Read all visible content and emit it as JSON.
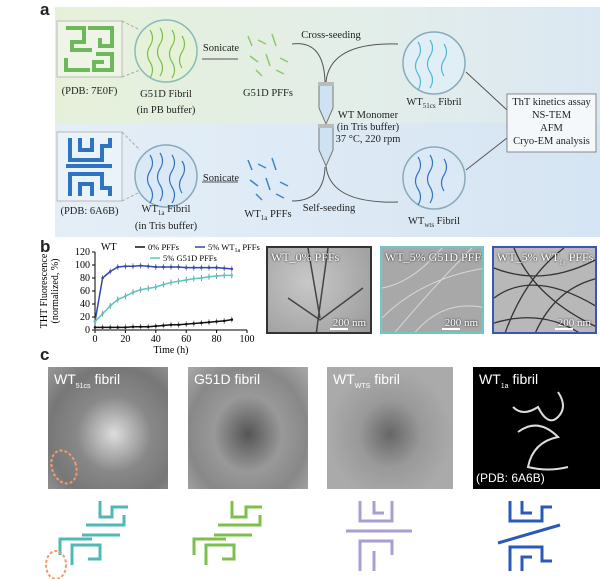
{
  "panel_a": {
    "label": "a",
    "top": {
      "pdb": "(PDB: 7E0F)",
      "fibril_line1": "G51D Fibril",
      "fibril_line2": "(in PB buffer)",
      "sonicate": "Sonicate",
      "pffs": "G51D PFFs",
      "seeding": "Cross-seeding",
      "product_main": "WT",
      "product_sub": "51cs",
      "product_suffix": " Fibril",
      "color": "#6cb85a"
    },
    "bottom": {
      "pdb": "(PDB: 6A6B)",
      "fibril_main": "WT",
      "fibril_sub": "1a",
      "fibril_suffix": " Fibril",
      "fibril_line2": "(in Tris buffer)",
      "sonicate": "Sonicate",
      "pffs_main": "WT",
      "pffs_sub": "1a",
      "pffs_suffix": " PFFs",
      "seeding": "Self-seeding",
      "product_main": "WT",
      "product_sub": "wts",
      "product_suffix": " Fibril",
      "color": "#2e74c0"
    },
    "monomer": [
      "WT Monomer",
      "(in Tris buffer)",
      "37 °C, 220 rpm"
    ],
    "analysis": [
      "ThT kinetics assay",
      "NS-TEM",
      "AFM",
      "Cryo-EM analysis"
    ]
  },
  "panel_b": {
    "label": "b",
    "tem_images": [
      {
        "label": "WT_0% PFFs",
        "scale": "200 nm",
        "border": "#333333"
      },
      {
        "label": "WT_5% G51D PFFs",
        "scale": "200 nm",
        "border": "#6cc9c9"
      },
      {
        "label_main": "WT_5% WT",
        "label_sub": "1a",
        "label_suffix": " PFFs",
        "scale": "200 nm",
        "border": "#3b55b5"
      }
    ]
  },
  "chart_data": {
    "type": "line",
    "annotation": "WT",
    "xlabel": "Time (h)",
    "ylabel": [
      "THT Fluorescence",
      "(normalized, %)"
    ],
    "xlim": [
      0,
      100
    ],
    "ylim": [
      0,
      120
    ],
    "xticks": [
      0,
      20,
      40,
      60,
      80,
      100
    ],
    "yticks": [
      0,
      20,
      40,
      60,
      80,
      100,
      120
    ],
    "legend_position": "top",
    "x": [
      0,
      5,
      10,
      15,
      20,
      25,
      30,
      35,
      40,
      45,
      50,
      55,
      60,
      65,
      70,
      75,
      80,
      85,
      90
    ],
    "series": [
      {
        "name": "0% PFFs",
        "color": "#111111",
        "values": [
          4,
          4,
          4,
          4,
          4,
          5,
          5,
          5,
          6,
          7,
          8,
          8,
          9,
          10,
          11,
          12,
          13,
          14,
          16
        ]
      },
      {
        "name_main": "5% WT",
        "name_sub": "1a",
        "name_suffix": " PFFs",
        "color": "#3346b0",
        "values": [
          13,
          80,
          90,
          97,
          98,
          98,
          99,
          98,
          97,
          97,
          97,
          97,
          96,
          96,
          96,
          96,
          96,
          95,
          94
        ]
      },
      {
        "name": "5% G51D PFFs",
        "color": "#5cc6c0",
        "values": [
          13,
          25,
          37,
          47,
          52,
          58,
          62,
          64,
          66,
          70,
          73,
          75,
          77,
          79,
          80,
          82,
          83,
          84,
          84
        ]
      }
    ]
  },
  "panel_c": {
    "label": "c",
    "maps": [
      {
        "main": "WT",
        "sub": "51cs",
        "suffix": " fibril",
        "color": "#4fb9b6"
      },
      {
        "main": "G51D fibril",
        "sub": "",
        "suffix": "",
        "color": "#7cbf4c"
      },
      {
        "main": "WT",
        "sub": "WTS",
        "suffix": " fibril",
        "color": "#a89ed2"
      },
      {
        "main": "WT",
        "sub": "1a",
        "suffix": " fibril",
        "color": "#2a59b8",
        "pdb": "(PDB: 6A6B)"
      }
    ],
    "highlight_color": "#f29a6b"
  }
}
